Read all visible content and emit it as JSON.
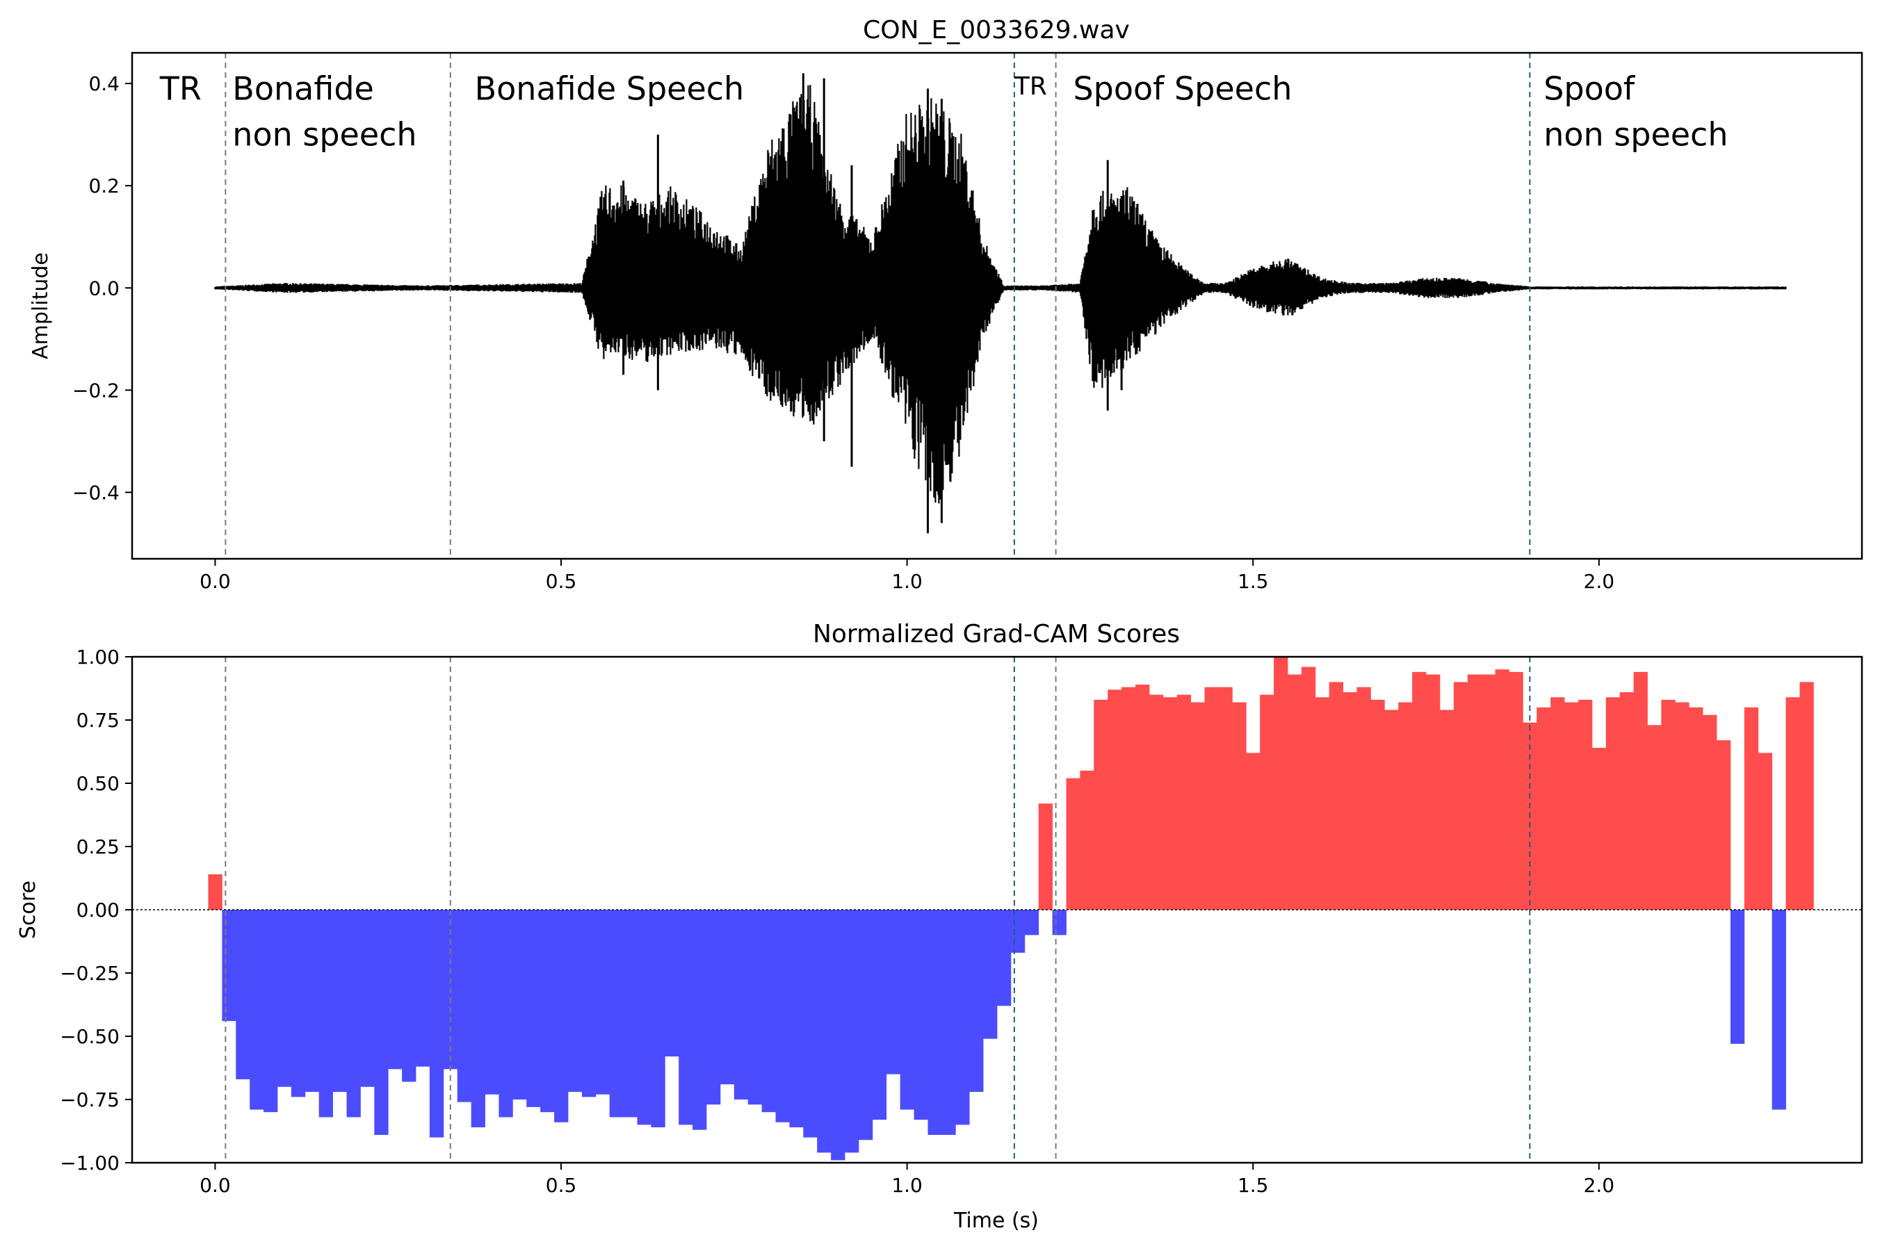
{
  "chart_data": [
    {
      "type": "line",
      "title": "CON_E_0033629.wav",
      "xlabel": "",
      "ylabel": "Amplitude",
      "xlim": [
        -0.12,
        2.38
      ],
      "ylim": [
        -0.53,
        0.46
      ],
      "xticks": [
        0.0,
        0.5,
        1.0,
        1.5,
        2.0
      ],
      "xtick_labels": [
        "0.0",
        "0.5",
        "1.0",
        "1.5",
        "2.0"
      ],
      "yticks": [
        -0.4,
        -0.2,
        0.0,
        0.2,
        0.4
      ],
      "ytick_labels": [
        "−0.4",
        "−0.2",
        "0.0",
        "0.2",
        "0.4"
      ],
      "grid": false,
      "series_color": "#000000",
      "envelope": {
        "t": [
          0.0,
          0.1,
          0.3,
          0.53,
          0.56,
          0.58,
          0.62,
          0.66,
          0.72,
          0.76,
          0.8,
          0.84,
          0.86,
          0.9,
          0.95,
          1.0,
          1.04,
          1.08,
          1.11,
          1.14,
          1.16,
          1.2,
          1.25,
          1.27,
          1.3,
          1.32,
          1.36,
          1.4,
          1.43,
          1.46,
          1.5,
          1.55,
          1.6,
          1.64,
          1.7,
          1.75,
          1.8,
          1.85,
          1.9,
          2.0,
          2.27
        ],
        "max": [
          0.003,
          0.01,
          0.005,
          0.01,
          0.2,
          0.21,
          0.17,
          0.2,
          0.13,
          0.08,
          0.29,
          0.38,
          0.4,
          0.18,
          0.1,
          0.35,
          0.38,
          0.3,
          0.1,
          0.005,
          0.005,
          0.005,
          0.01,
          0.19,
          0.19,
          0.2,
          0.1,
          0.04,
          0.01,
          0.01,
          0.04,
          0.06,
          0.02,
          0.01,
          0.01,
          0.02,
          0.02,
          0.01,
          0.003,
          0.003,
          0.003
        ],
        "min": [
          -0.003,
          -0.01,
          -0.005,
          -0.01,
          -0.15,
          -0.13,
          -0.15,
          -0.13,
          -0.12,
          -0.14,
          -0.22,
          -0.26,
          -0.28,
          -0.2,
          -0.1,
          -0.3,
          -0.45,
          -0.33,
          -0.1,
          -0.005,
          -0.005,
          -0.005,
          -0.01,
          -0.21,
          -0.19,
          -0.15,
          -0.09,
          -0.04,
          -0.01,
          -0.01,
          -0.04,
          -0.06,
          -0.02,
          -0.01,
          -0.01,
          -0.02,
          -0.02,
          -0.01,
          -0.003,
          -0.003,
          -0.003
        ]
      },
      "spikes": [
        {
          "t": 0.64,
          "min": -0.2,
          "max": 0.3
        },
        {
          "t": 0.59,
          "min": -0.17,
          "max": 0.21
        },
        {
          "t": 0.85,
          "min": -0.25,
          "max": 0.42
        },
        {
          "t": 0.88,
          "min": -0.3,
          "max": 0.41
        },
        {
          "t": 0.92,
          "min": -0.35,
          "max": 0.24
        },
        {
          "t": 1.03,
          "min": -0.48,
          "max": 0.39
        },
        {
          "t": 1.05,
          "min": -0.46,
          "max": 0.37
        },
        {
          "t": 1.29,
          "min": -0.24,
          "max": 0.25
        },
        {
          "t": 1.31,
          "min": -0.2,
          "max": 0.18
        }
      ],
      "annotations": [
        {
          "text": "TR",
          "x": -0.08,
          "y": 0.39
        },
        {
          "text": "Bonafide",
          "x": 0.025,
          "y": 0.39
        },
        {
          "text": "non speech",
          "x": 0.025,
          "y": 0.3
        },
        {
          "text": "Bonafide Speech",
          "x": 0.375,
          "y": 0.39
        },
        {
          "text": "TR",
          "x": 1.155,
          "y": 0.4
        },
        {
          "text": "Spoof Speech",
          "x": 1.24,
          "y": 0.39
        },
        {
          "text": "Spoof",
          "x": 1.92,
          "y": 0.39
        },
        {
          "text": "non speech",
          "x": 1.92,
          "y": 0.3
        }
      ]
    },
    {
      "type": "bar",
      "title": "Normalized Grad-CAM Scores",
      "xlabel": "Time (s)",
      "ylabel": "Score",
      "xlim": [
        -0.12,
        2.38
      ],
      "ylim": [
        -1.0,
        1.0
      ],
      "xticks": [
        0.0,
        0.5,
        1.0,
        1.5,
        2.0
      ],
      "xtick_labels": [
        "0.0",
        "0.5",
        "1.0",
        "1.5",
        "2.0"
      ],
      "yticks": [
        -1.0,
        -0.75,
        -0.5,
        -0.25,
        0.0,
        0.25,
        0.5,
        0.75,
        1.0
      ],
      "ytick_labels": [
        "−1.00",
        "−0.75",
        "−0.50",
        "−0.25",
        "0.00",
        "0.25",
        "0.50",
        "0.75",
        "1.00"
      ],
      "grid": false,
      "positive_color": "#ff4c4c",
      "negative_color": "#4c4cff",
      "bar_width": 0.02,
      "x_start": -0.01,
      "values": [
        0.14,
        -0.44,
        -0.67,
        -0.79,
        -0.8,
        -0.7,
        -0.74,
        -0.72,
        -0.82,
        -0.72,
        -0.82,
        -0.7,
        -0.89,
        -0.63,
        -0.68,
        -0.62,
        -0.9,
        -0.63,
        -0.76,
        -0.86,
        -0.73,
        -0.82,
        -0.75,
        -0.78,
        -0.8,
        -0.84,
        -0.72,
        -0.74,
        -0.73,
        -0.82,
        -0.82,
        -0.85,
        -0.86,
        -0.58,
        -0.85,
        -0.87,
        -0.77,
        -0.69,
        -0.75,
        -0.77,
        -0.8,
        -0.84,
        -0.86,
        -0.9,
        -0.96,
        -0.99,
        -0.96,
        -0.91,
        -0.83,
        -0.65,
        -0.79,
        -0.83,
        -0.89,
        -0.89,
        -0.85,
        -0.72,
        -0.51,
        -0.38,
        -0.17,
        -0.1,
        0.42,
        -0.1,
        0.52,
        0.55,
        0.83,
        0.87,
        0.88,
        0.89,
        0.85,
        0.84,
        0.85,
        0.82,
        0.88,
        0.88,
        0.82,
        0.62,
        0.85,
        1.0,
        0.93,
        0.96,
        0.84,
        0.9,
        0.86,
        0.88,
        0.83,
        0.79,
        0.82,
        0.94,
        0.93,
        0.79,
        0.9,
        0.93,
        0.93,
        0.95,
        0.94,
        0.74,
        0.8,
        0.84,
        0.82,
        0.83,
        0.64,
        0.84,
        0.86,
        0.94,
        0.73,
        0.83,
        0.82,
        0.8,
        0.77,
        0.67,
        -0.53,
        0.8,
        0.62,
        -0.79,
        0.84,
        0.9
      ]
    }
  ],
  "shared": {
    "boundaries": [
      {
        "t": 0.015,
        "color": "#7a7a7a"
      },
      {
        "t": 0.34,
        "color": "#7a7a7a"
      },
      {
        "t": 1.155,
        "color": "#1f5f7f"
      },
      {
        "t": 1.215,
        "color": "#7a7a7a"
      },
      {
        "t": 1.9,
        "color": "#1f5f7f"
      }
    ]
  }
}
